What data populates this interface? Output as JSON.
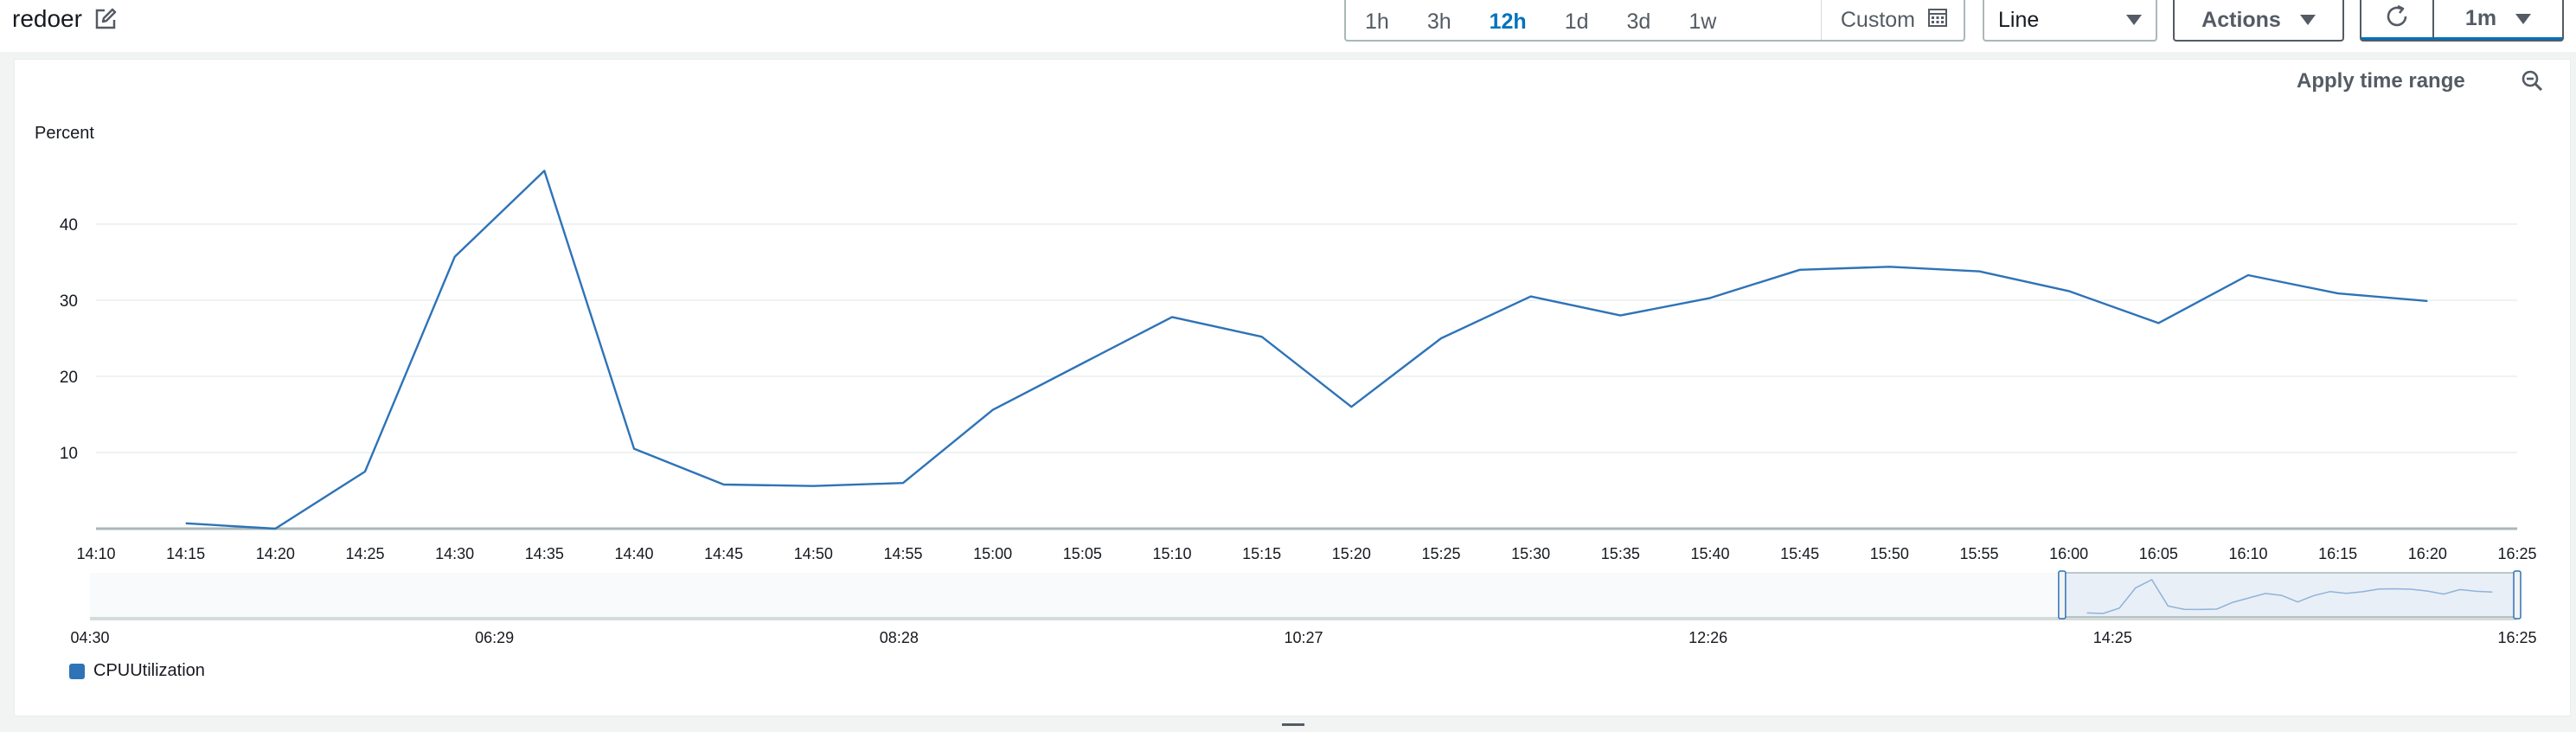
{
  "header": {
    "title": "redoer",
    "ranges": [
      "1h",
      "3h",
      "12h",
      "1d",
      "3d",
      "1w"
    ],
    "active_range": "12h",
    "custom_label": "Custom",
    "chart_type_select": "Line",
    "actions_label": "Actions",
    "refresh_interval": "1m"
  },
  "panel": {
    "apply_time_range": "Apply time range"
  },
  "icons": {
    "edit": "edit-icon",
    "calendar": "calendar-icon",
    "refresh": "refresh-icon",
    "zoom_out": "zoom-out-icon"
  },
  "colors": {
    "series": "#2e73b8",
    "active_tab": "#0073bb",
    "navigator_fill": "#e9eff6"
  },
  "chart_data": {
    "type": "line",
    "ylabel": "Percent",
    "yticks": [
      10,
      20,
      30,
      40
    ],
    "ylim": [
      0,
      50
    ],
    "xticks": [
      "14:10",
      "14:15",
      "14:20",
      "14:25",
      "14:30",
      "14:35",
      "14:40",
      "14:45",
      "14:50",
      "14:55",
      "15:00",
      "15:05",
      "15:10",
      "15:15",
      "15:20",
      "15:25",
      "15:30",
      "15:35",
      "15:40",
      "15:45",
      "15:50",
      "15:55",
      "16:00",
      "16:05",
      "16:10",
      "16:15",
      "16:20",
      "16:25"
    ],
    "grid": true,
    "legend_position": "bottom-left",
    "series": [
      {
        "name": "CPUUtilization",
        "x": [
          "14:15",
          "14:20",
          "14:25",
          "14:30",
          "14:35",
          "14:40",
          "14:45",
          "14:50",
          "14:55",
          "15:00",
          "15:05",
          "15:10",
          "15:15",
          "15:20",
          "15:25",
          "15:30",
          "15:35",
          "15:40",
          "15:45",
          "15:50",
          "15:55",
          "16:00",
          "16:05",
          "16:10",
          "16:15",
          "16:20"
        ],
        "values": [
          0.7,
          0.0,
          7.5,
          35.7,
          47.0,
          10.5,
          5.8,
          5.6,
          6.0,
          15.6,
          21.7,
          27.8,
          25.2,
          16.0,
          25.0,
          30.5,
          28.0,
          30.3,
          34.0,
          34.4,
          33.8,
          31.2,
          27.0,
          33.3,
          30.9,
          29.9
        ]
      }
    ],
    "navigator": {
      "xticks": [
        "04:30",
        "06:29",
        "08:28",
        "10:27",
        "12:26",
        "14:25",
        "16:25"
      ],
      "selected_range": [
        "14:10",
        "16:25"
      ]
    }
  }
}
